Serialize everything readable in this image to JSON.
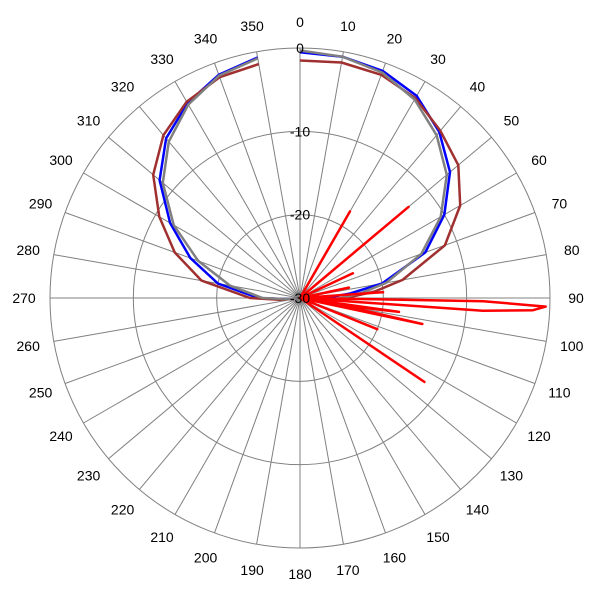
{
  "chart_data": {
    "type": "polar-line",
    "title": "",
    "angle_direction": "clockwise",
    "angle_zero": "top",
    "angle_ticks": [
      0,
      10,
      20,
      30,
      40,
      50,
      60,
      70,
      80,
      90,
      100,
      110,
      120,
      130,
      140,
      150,
      160,
      170,
      180,
      190,
      200,
      210,
      220,
      230,
      240,
      250,
      260,
      270,
      280,
      290,
      300,
      310,
      320,
      330,
      340,
      350
    ],
    "radial_ticks": [
      0,
      -10,
      -20,
      -30
    ],
    "radial_range": [
      -30,
      0
    ],
    "grid": true,
    "legend": "none",
    "series": [
      {
        "color": "#0000ff",
        "points": [
          [
            0,
            -0.5
          ],
          [
            10,
            -0.6
          ],
          [
            20,
            -1
          ],
          [
            30,
            -2
          ],
          [
            40,
            -4
          ],
          [
            50,
            -6.5
          ],
          [
            60,
            -10
          ],
          [
            70,
            -14
          ],
          [
            80,
            -20
          ],
          [
            85,
            -24
          ],
          [
            90,
            -27
          ],
          [
            95,
            -28.5
          ],
          [
            100,
            -30
          ],
          [
            180,
            -30
          ],
          [
            260,
            -29.5
          ],
          [
            265,
            -28.5
          ],
          [
            270,
            -25
          ],
          [
            280,
            -20
          ],
          [
            290,
            -16
          ],
          [
            300,
            -12
          ],
          [
            310,
            -8
          ],
          [
            320,
            -5
          ],
          [
            330,
            -3
          ],
          [
            340,
            -1.5
          ],
          [
            350,
            -0.7
          ]
        ]
      },
      {
        "color": "#a03030",
        "points": [
          [
            0,
            -1.5
          ],
          [
            10,
            -1.3
          ],
          [
            20,
            -1.5
          ],
          [
            30,
            -2.3
          ],
          [
            40,
            -3.8
          ],
          [
            50,
            -5.2
          ],
          [
            60,
            -7.8
          ],
          [
            70,
            -11.5
          ],
          [
            80,
            -17.5
          ],
          [
            85,
            -21
          ],
          [
            90,
            -24.5
          ],
          [
            95,
            -27
          ],
          [
            100,
            -30
          ],
          [
            180,
            -30
          ],
          [
            260,
            -29.5
          ],
          [
            265,
            -27.5
          ],
          [
            270,
            -24
          ],
          [
            280,
            -18
          ],
          [
            290,
            -14
          ],
          [
            300,
            -10.5
          ],
          [
            310,
            -7
          ],
          [
            320,
            -4.5
          ],
          [
            330,
            -2.8
          ],
          [
            340,
            -1.8
          ],
          [
            350,
            -1.5
          ]
        ]
      },
      {
        "color": "#808080",
        "points": [
          [
            0,
            -0.3
          ],
          [
            10,
            -0.6
          ],
          [
            20,
            -1.2
          ],
          [
            30,
            -2.5
          ],
          [
            40,
            -4.5
          ],
          [
            50,
            -7
          ],
          [
            60,
            -10.5
          ],
          [
            70,
            -14.5
          ],
          [
            80,
            -19.5
          ],
          [
            85,
            -22.5
          ],
          [
            90,
            -25
          ],
          [
            95,
            -27
          ],
          [
            100,
            -30
          ],
          [
            180,
            -30
          ],
          [
            260,
            -29.5
          ],
          [
            265,
            -28.5
          ],
          [
            270,
            -25.5
          ],
          [
            280,
            -21.5
          ],
          [
            290,
            -17
          ],
          [
            300,
            -12.5
          ],
          [
            310,
            -8.5
          ],
          [
            320,
            -5.5
          ],
          [
            330,
            -3.2
          ],
          [
            340,
            -1.6
          ],
          [
            350,
            -0.8
          ]
        ]
      },
      {
        "color": "#ff0000",
        "points": [
          [
            0,
            -30
          ],
          [
            20,
            -30
          ],
          [
            30,
            -18
          ],
          [
            34,
            -30
          ],
          [
            42,
            -30
          ],
          [
            50,
            -13
          ],
          [
            55,
            -30
          ],
          [
            62,
            -30
          ],
          [
            65,
            -23
          ],
          [
            68,
            -30
          ],
          [
            75,
            -30
          ],
          [
            78,
            -24
          ],
          [
            80,
            -30
          ],
          [
            84,
            -30
          ],
          [
            86,
            -20
          ],
          [
            88,
            -30
          ],
          [
            90,
            -30
          ],
          [
            91,
            -8
          ],
          [
            92,
            -0.5
          ],
          [
            93,
            -2
          ],
          [
            94,
            -8
          ],
          [
            95,
            -30
          ],
          [
            96,
            -30
          ],
          [
            98,
            -18
          ],
          [
            100,
            -25
          ],
          [
            102,
            -15
          ],
          [
            104,
            -30
          ],
          [
            108,
            -30
          ],
          [
            112,
            -20
          ],
          [
            115,
            -30
          ],
          [
            120,
            -30
          ],
          [
            124,
            -12
          ],
          [
            128,
            -30
          ],
          [
            180,
            -30
          ],
          [
            350,
            -30
          ],
          [
            360,
            -30
          ]
        ]
      }
    ]
  }
}
